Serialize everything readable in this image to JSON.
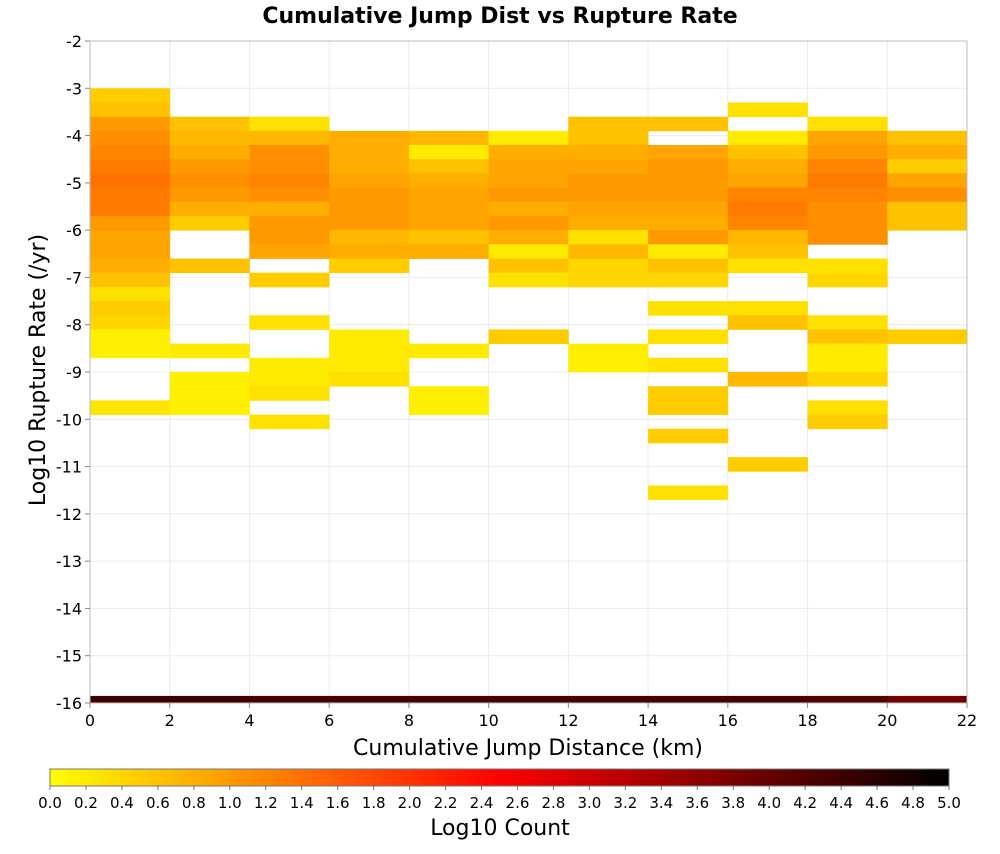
{
  "chart_data": {
    "type": "heatmap",
    "title": "Cumulative Jump Dist vs Rupture Rate",
    "xlabel": "Cumulative Jump Distance (km)",
    "ylabel": "Log10 Rupture Rate (/yr)",
    "xlim": [
      0,
      22
    ],
    "ylim": [
      -16,
      -2
    ],
    "x_ticks": [
      0,
      2,
      4,
      6,
      8,
      10,
      12,
      14,
      16,
      18,
      20,
      22
    ],
    "y_ticks": [
      -2,
      -3,
      -4,
      -5,
      -6,
      -7,
      -8,
      -9,
      -10,
      -11,
      -12,
      -13,
      -14,
      -15,
      -16
    ],
    "grid": true,
    "x_bin_width": 2,
    "y_bin_height": 0.3,
    "colorbar": {
      "label": "Log10 Count",
      "range": [
        0,
        5
      ],
      "ticks": [
        0.0,
        0.2,
        0.4,
        0.6,
        0.8,
        1.0,
        1.2,
        1.4,
        1.6,
        1.8,
        2.0,
        2.2,
        2.4,
        2.6,
        2.8,
        3.0,
        3.2,
        3.4,
        3.6,
        3.8,
        4.0,
        4.2,
        4.4,
        4.6,
        4.8,
        5.0
      ],
      "colormap": [
        "#ffff00",
        "#ff8000",
        "#ff0000",
        "#800000",
        "#000000"
      ]
    },
    "columns": [
      {
        "x": 0,
        "cells": [
          [
            -3.0,
            0.5
          ],
          [
            -3.3,
            0.6
          ],
          [
            -3.6,
            1.0
          ],
          [
            -3.9,
            1.1
          ],
          [
            -4.2,
            1.2
          ],
          [
            -4.5,
            1.3
          ],
          [
            -4.8,
            1.4
          ],
          [
            -5.1,
            1.3
          ],
          [
            -5.4,
            1.3
          ],
          [
            -5.7,
            1.0
          ],
          [
            -6.0,
            0.9
          ],
          [
            -6.3,
            0.9
          ],
          [
            -6.6,
            0.8
          ],
          [
            -6.9,
            0.6
          ],
          [
            -7.2,
            0.3
          ],
          [
            -7.5,
            0.5
          ],
          [
            -7.8,
            0.4
          ],
          [
            -8.1,
            0.15
          ],
          [
            -8.4,
            0.15
          ],
          [
            -9.6,
            0.25
          ]
        ]
      },
      {
        "x": 2,
        "cells": [
          [
            -3.6,
            0.6
          ],
          [
            -3.9,
            0.7
          ],
          [
            -4.2,
            0.8
          ],
          [
            -4.5,
            1.0
          ],
          [
            -4.8,
            1.1
          ],
          [
            -5.1,
            1.0
          ],
          [
            -5.4,
            0.8
          ],
          [
            -5.7,
            0.5
          ],
          [
            -6.6,
            0.6
          ],
          [
            -8.4,
            0.2
          ],
          [
            -9.0,
            0.15
          ],
          [
            -9.3,
            0.15
          ],
          [
            -9.6,
            0.15
          ]
        ]
      },
      {
        "x": 4,
        "cells": [
          [
            -3.6,
            0.3
          ],
          [
            -3.9,
            0.7
          ],
          [
            -4.2,
            1.1
          ],
          [
            -4.5,
            1.1
          ],
          [
            -4.8,
            1.2
          ],
          [
            -5.1,
            1.1
          ],
          [
            -5.4,
            0.8
          ],
          [
            -5.7,
            1.0
          ],
          [
            -6.0,
            1.0
          ],
          [
            -6.3,
            0.9
          ],
          [
            -6.9,
            0.5
          ],
          [
            -7.8,
            0.3
          ],
          [
            -8.7,
            0.2
          ],
          [
            -9.0,
            0.2
          ],
          [
            -9.3,
            0.3
          ],
          [
            -9.9,
            0.3
          ]
        ]
      },
      {
        "x": 6,
        "cells": [
          [
            -3.9,
            0.8
          ],
          [
            -4.2,
            0.8
          ],
          [
            -4.5,
            0.8
          ],
          [
            -4.8,
            0.9
          ],
          [
            -5.1,
            1.0
          ],
          [
            -5.4,
            1.0
          ],
          [
            -5.7,
            1.0
          ],
          [
            -6.0,
            0.7
          ],
          [
            -6.3,
            0.8
          ],
          [
            -6.6,
            0.5
          ],
          [
            -8.1,
            0.2
          ],
          [
            -8.4,
            0.2
          ],
          [
            -8.7,
            0.2
          ],
          [
            -9.0,
            0.3
          ]
        ]
      },
      {
        "x": 8,
        "cells": [
          [
            -3.9,
            0.7
          ],
          [
            -4.2,
            0.2
          ],
          [
            -4.5,
            0.6
          ],
          [
            -4.8,
            0.8
          ],
          [
            -5.1,
            0.9
          ],
          [
            -5.4,
            0.9
          ],
          [
            -5.7,
            0.9
          ],
          [
            -6.0,
            0.6
          ],
          [
            -6.3,
            0.8
          ],
          [
            -8.4,
            0.2
          ],
          [
            -9.3,
            0.15
          ],
          [
            -9.6,
            0.15
          ]
        ]
      },
      {
        "x": 10,
        "cells": [
          [
            -3.9,
            0.2
          ],
          [
            -4.2,
            0.8
          ],
          [
            -4.5,
            0.9
          ],
          [
            -4.8,
            0.9
          ],
          [
            -5.1,
            1.0
          ],
          [
            -5.4,
            0.8
          ],
          [
            -5.7,
            1.0
          ],
          [
            -6.0,
            0.8
          ],
          [
            -6.3,
            0.2
          ],
          [
            -6.6,
            0.6
          ],
          [
            -6.9,
            0.3
          ],
          [
            -8.1,
            0.5
          ]
        ]
      },
      {
        "x": 12,
        "cells": [
          [
            -3.6,
            0.6
          ],
          [
            -3.9,
            0.6
          ],
          [
            -4.2,
            0.8
          ],
          [
            -4.5,
            0.9
          ],
          [
            -4.8,
            1.0
          ],
          [
            -5.1,
            1.0
          ],
          [
            -5.4,
            0.9
          ],
          [
            -5.7,
            0.8
          ],
          [
            -6.0,
            0.3
          ],
          [
            -6.3,
            0.7
          ],
          [
            -6.6,
            0.4
          ],
          [
            -6.9,
            0.4
          ],
          [
            -8.4,
            0.15
          ],
          [
            -8.7,
            0.15
          ]
        ]
      },
      {
        "x": 14,
        "cells": [
          [
            -3.6,
            0.6
          ],
          [
            -4.2,
            0.9
          ],
          [
            -4.5,
            1.0
          ],
          [
            -4.8,
            1.0
          ],
          [
            -5.1,
            1.0
          ],
          [
            -5.4,
            0.9
          ],
          [
            -5.7,
            0.8
          ],
          [
            -6.0,
            1.0
          ],
          [
            -6.3,
            0.2
          ],
          [
            -6.6,
            0.6
          ],
          [
            -6.9,
            0.4
          ],
          [
            -7.5,
            0.3
          ],
          [
            -8.1,
            0.3
          ],
          [
            -8.7,
            0.3
          ],
          [
            -9.3,
            0.5
          ],
          [
            -9.6,
            0.5
          ],
          [
            -10.2,
            0.5
          ],
          [
            -11.4,
            0.3
          ]
        ]
      },
      {
        "x": 16,
        "cells": [
          [
            -3.3,
            0.3
          ],
          [
            -3.9,
            0.2
          ],
          [
            -4.2,
            0.6
          ],
          [
            -4.5,
            0.8
          ],
          [
            -4.8,
            0.9
          ],
          [
            -5.1,
            1.2
          ],
          [
            -5.4,
            1.3
          ],
          [
            -5.7,
            1.2
          ],
          [
            -6.0,
            0.7
          ],
          [
            -6.3,
            0.6
          ],
          [
            -6.6,
            0.3
          ],
          [
            -7.5,
            0.3
          ],
          [
            -7.8,
            0.6
          ],
          [
            -9.0,
            0.7
          ],
          [
            -10.8,
            0.5
          ]
        ]
      },
      {
        "x": 18,
        "cells": [
          [
            -3.6,
            0.3
          ],
          [
            -3.9,
            0.9
          ],
          [
            -4.2,
            1.0
          ],
          [
            -4.5,
            1.2
          ],
          [
            -4.8,
            1.3
          ],
          [
            -5.1,
            1.2
          ],
          [
            -5.4,
            1.1
          ],
          [
            -5.7,
            1.1
          ],
          [
            -6.0,
            1.1
          ],
          [
            -6.6,
            0.3
          ],
          [
            -6.9,
            0.4
          ],
          [
            -7.8,
            0.3
          ],
          [
            -8.1,
            0.6
          ],
          [
            -8.4,
            0.2
          ],
          [
            -8.7,
            0.2
          ],
          [
            -9.0,
            0.4
          ],
          [
            -9.6,
            0.3
          ],
          [
            -9.9,
            0.5
          ]
        ]
      },
      {
        "x": 20,
        "cells": [
          [
            -3.9,
            0.6
          ],
          [
            -4.2,
            0.8
          ],
          [
            -4.5,
            0.5
          ],
          [
            -4.8,
            0.9
          ],
          [
            -5.1,
            1.1
          ],
          [
            -5.4,
            0.6
          ],
          [
            -5.7,
            0.6
          ],
          [
            -8.1,
            0.5
          ]
        ]
      }
    ],
    "bottom_row": {
      "y_min": -16,
      "y_max": -15.85,
      "segments": [
        {
          "x": 0,
          "value": 4.4
        },
        {
          "x": 2,
          "value": 4.4
        },
        {
          "x": 4,
          "value": 4.3
        },
        {
          "x": 6,
          "value": 4.3
        },
        {
          "x": 8,
          "value": 4.3
        },
        {
          "x": 10,
          "value": 4.3
        },
        {
          "x": 12,
          "value": 4.3
        },
        {
          "x": 14,
          "value": 4.3
        },
        {
          "x": 16,
          "value": 4.3
        },
        {
          "x": 18,
          "value": 4.2
        },
        {
          "x": 20,
          "value": 3.9
        }
      ]
    }
  }
}
